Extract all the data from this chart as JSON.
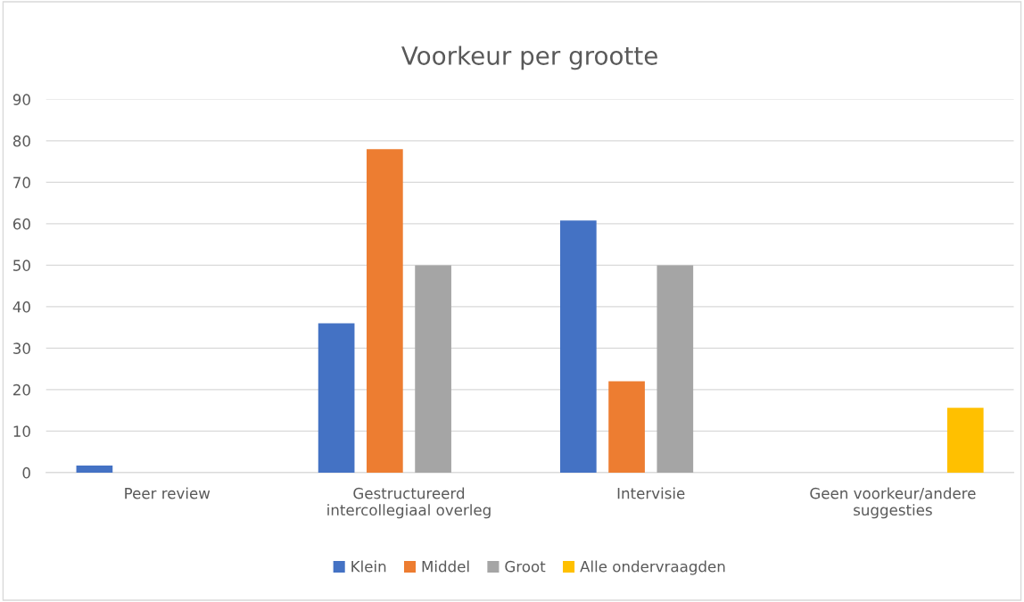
{
  "chart_data": {
    "type": "bar",
    "title": "Voorkeur per grootte",
    "categories": [
      "Peer review",
      "Gestructureerd\nintercollegiaal overleg",
      "Intervisie",
      "Geen voorkeur/andere\nsuggesties"
    ],
    "series": [
      {
        "name": "Klein",
        "color": "#4472c4",
        "values": [
          1.7,
          36,
          60.8,
          null
        ]
      },
      {
        "name": "Middel",
        "color": "#ed7d31",
        "values": [
          null,
          78,
          22,
          null
        ]
      },
      {
        "name": "Groot",
        "color": "#a5a5a5",
        "values": [
          null,
          50,
          50,
          null
        ]
      },
      {
        "name": "Alle ondervraagden",
        "color": "#ffc000",
        "values": [
          null,
          null,
          null,
          15.6
        ]
      }
    ],
    "ylim": [
      0,
      90
    ],
    "yticks": [
      0,
      10,
      20,
      30,
      40,
      50,
      60,
      70,
      80,
      90
    ],
    "grid": "y",
    "legend": "bottom"
  }
}
